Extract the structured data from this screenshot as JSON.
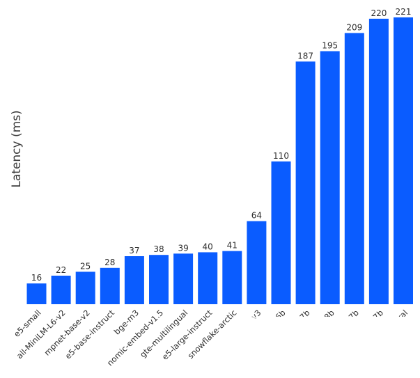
{
  "chart_data": {
    "type": "bar",
    "title": "",
    "xlabel": "",
    "ylabel": "Latency (ms)",
    "categories": [
      "e5-small",
      "all-MiniLM-L6-v2",
      "mpnet-base-v2",
      "e5-base-instruct",
      "bge-m3",
      "nomic-embed-v1.5",
      "gte-multilingual",
      "e5-large-instruct",
      "snowflake-arctic",
      "v3",
      "6b",
      "7b",
      "8b",
      "7b",
      "7b",
      "ral"
    ],
    "values": [
      16,
      22,
      25,
      28,
      37,
      38,
      39,
      40,
      41,
      64,
      110,
      187,
      195,
      209,
      220,
      221
    ],
    "ylim": [
      0,
      221
    ],
    "grid": false,
    "bar_color": "#0a5cff",
    "text_color": "#2e2e2e"
  }
}
